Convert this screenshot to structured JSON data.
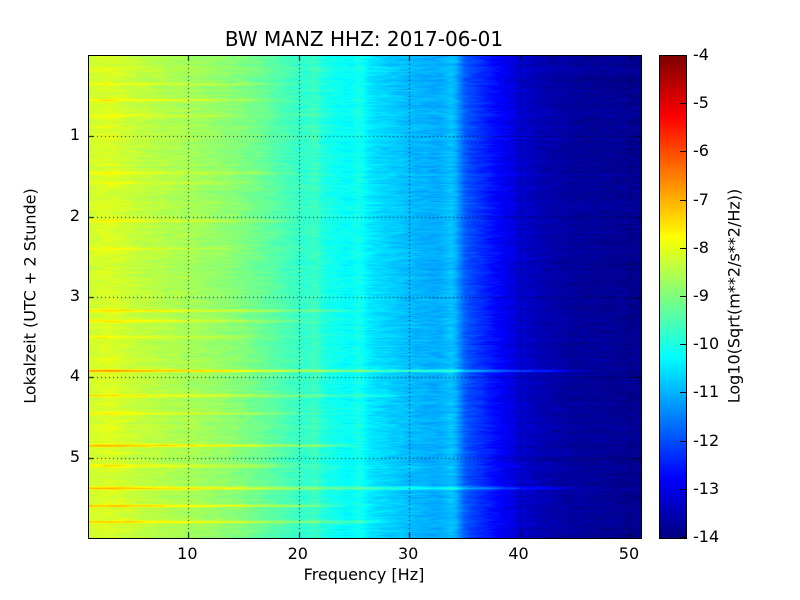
{
  "colors": {
    "background": "#ffffff",
    "frame": "#000000",
    "grid": "#000000"
  },
  "chart_data": {
    "type": "heatmap",
    "title": "BW MANZ HHZ: 2017-06-01",
    "xlabel": "Frequency [Hz]",
    "ylabel": "Lokalzeit (UTC + 2 Stunde)",
    "colorbar_label": "Log10(Sqrt(m**2/s**2/Hz))",
    "colormap": "jet",
    "grid": "dotted",
    "legend_position": "none",
    "x_range": [
      1,
      51
    ],
    "x_ticks": [
      10,
      20,
      30,
      40,
      50
    ],
    "y_range": [
      0,
      6
    ],
    "y_ticks": [
      1,
      2,
      3,
      4,
      5
    ],
    "color_range": [
      -14,
      -4
    ],
    "colorbar_ticks": [
      -4,
      -5,
      -6,
      -7,
      -8,
      -9,
      -10,
      -11,
      -12,
      -13,
      -14
    ],
    "spectral_profile": {
      "frequencies": [
        1,
        3,
        5,
        8,
        10,
        13,
        15,
        18,
        20,
        25,
        30,
        33,
        35,
        38,
        40,
        42,
        45,
        50
      ],
      "values": [
        -8.2,
        -8.1,
        -8.3,
        -8.5,
        -8.6,
        -8.8,
        -9.0,
        -9.4,
        -9.7,
        -10.3,
        -10.9,
        -11.1,
        -11.9,
        -12.7,
        -13.2,
        -13.5,
        -13.7,
        -13.8
      ]
    },
    "events": [
      {
        "time": 0.35,
        "boost": 0.4,
        "max_freq": 16
      },
      {
        "time": 0.55,
        "boost": 0.5,
        "max_freq": 14
      },
      {
        "time": 0.75,
        "boost": 0.35,
        "max_freq": 12
      },
      {
        "time": 1.45,
        "boost": 0.45,
        "max_freq": 16
      },
      {
        "time": 1.58,
        "boost": 0.4,
        "max_freq": 14
      },
      {
        "time": 2.05,
        "boost": 0.45,
        "max_freq": 16
      },
      {
        "time": 2.4,
        "boost": 0.35,
        "max_freq": 12
      },
      {
        "time": 3.17,
        "boost": 0.8,
        "max_freq": 22
      },
      {
        "time": 3.3,
        "boost": 0.65,
        "max_freq": 18
      },
      {
        "time": 3.5,
        "boost": 0.4,
        "max_freq": 14
      },
      {
        "time": 3.92,
        "boost": 1.5,
        "max_freq": 42
      },
      {
        "time": 4.23,
        "boost": 0.8,
        "max_freq": 26
      },
      {
        "time": 4.45,
        "boost": 0.6,
        "max_freq": 18
      },
      {
        "time": 4.85,
        "boost": 1.3,
        "max_freq": 22
      },
      {
        "time": 5.1,
        "boost": 0.6,
        "max_freq": 16
      },
      {
        "time": 5.38,
        "boost": 1.2,
        "max_freq": 42
      },
      {
        "time": 5.6,
        "boost": 1.0,
        "max_freq": 20
      },
      {
        "time": 5.8,
        "boost": 0.9,
        "max_freq": 24
      }
    ],
    "vertical_bands": [
      {
        "freq": 34,
        "boost": 0.6,
        "width": 0.8
      },
      {
        "freq": 25.5,
        "boost": 0.3,
        "width": 0.6
      },
      {
        "freq": 21.5,
        "boost": 0.25,
        "width": 0.5
      }
    ]
  }
}
